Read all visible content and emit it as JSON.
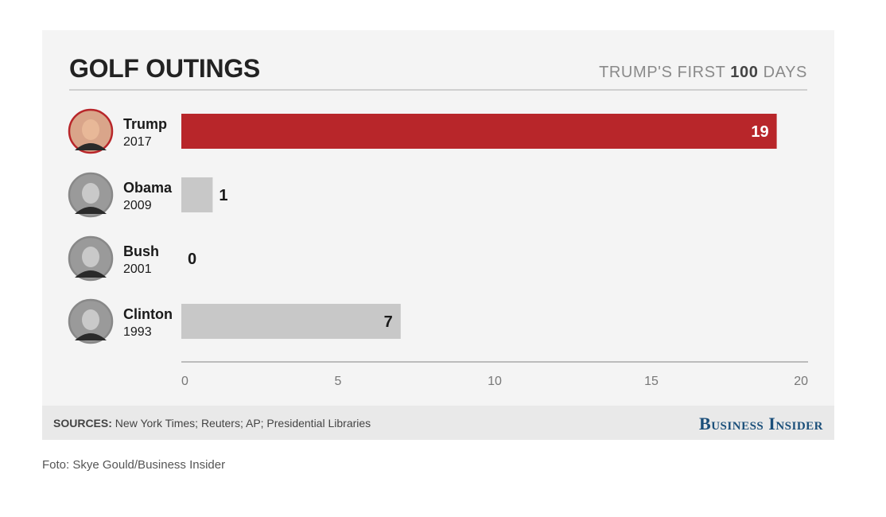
{
  "chart_data": {
    "type": "bar",
    "orientation": "horizontal",
    "title": "GOLF OUTINGS",
    "subtitle_prefix": "TRUMP'S FIRST",
    "subtitle_number": "100",
    "subtitle_suffix": "DAYS",
    "categories": [
      {
        "name": "Trump",
        "year": "2017"
      },
      {
        "name": "Obama",
        "year": "2009"
      },
      {
        "name": "Bush",
        "year": "2001"
      },
      {
        "name": "Clinton",
        "year": "1993"
      }
    ],
    "values": [
      19,
      1,
      0,
      7
    ],
    "xlim": [
      0,
      20
    ],
    "xticks": [
      0,
      5,
      10,
      15,
      20
    ],
    "highlight_color": "#b8262a",
    "bar_color": "#c8c8c8",
    "grid": false,
    "legend": "none"
  },
  "footer": {
    "sources_label": "SOURCES:",
    "sources_text": " New York Times; Reuters; AP; Presidential Libraries",
    "brand": "Business Insider"
  },
  "credit": "Foto: Skye Gould/Business Insider",
  "icons": [
    "portrait-trump",
    "portrait-obama",
    "portrait-bush",
    "portrait-clinton"
  ]
}
